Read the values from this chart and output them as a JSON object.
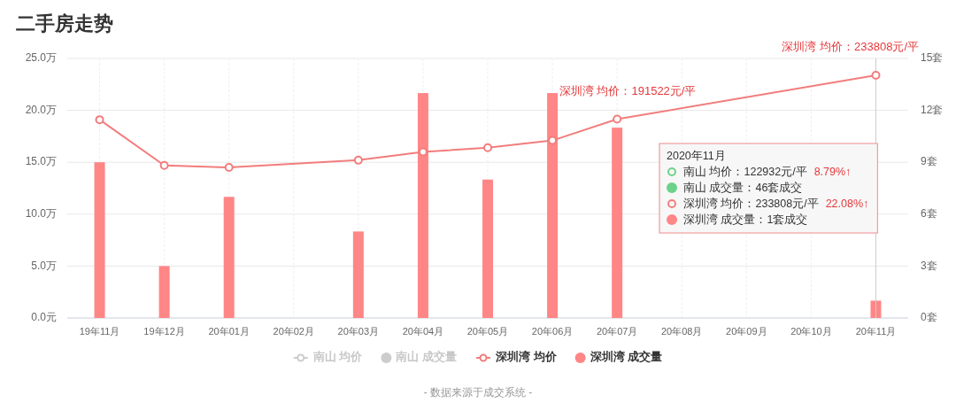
{
  "chart_data": {
    "type": "bar",
    "title": "二手房走势",
    "categories": [
      "19年11月",
      "19年12月",
      "20年01月",
      "20年02月",
      "20年03月",
      "20年04月",
      "20年05月",
      "20年06月",
      "20年07月",
      "20年08月",
      "20年09月",
      "20年10月",
      "20年11月"
    ],
    "series": [
      {
        "name": "南山 均价",
        "type": "line",
        "color": "#cccccc",
        "values": [
          null,
          null,
          null,
          null,
          null,
          null,
          null,
          null,
          null,
          null,
          null,
          null,
          null
        ]
      },
      {
        "name": "南山 成交量",
        "axis": "y2",
        "color": "#cccccc",
        "values": [
          null,
          null,
          null,
          null,
          null,
          null,
          null,
          null,
          null,
          null,
          null,
          null,
          null
        ]
      },
      {
        "name": "深圳湾 均价",
        "type": "line",
        "color": "#f27d7d",
        "values": [
          19.1,
          14.7,
          14.5,
          null,
          15.2,
          16.0,
          16.4,
          17.1,
          19.1522,
          null,
          null,
          null,
          23.3808
        ]
      },
      {
        "name": "深圳湾 成交量",
        "axis": "y2",
        "color": "#ff8686",
        "values": [
          9,
          3,
          7,
          null,
          5,
          13,
          8,
          13,
          11,
          null,
          null,
          null,
          1
        ]
      }
    ],
    "ylim": [
      0,
      25
    ],
    "yticks": [
      {
        "value": 0,
        "label": "0.0元"
      },
      {
        "value": 5,
        "label": "5.0万"
      },
      {
        "value": 10,
        "label": "10.0万"
      },
      {
        "value": 15,
        "label": "15.0万"
      },
      {
        "value": 20,
        "label": "20.0万"
      },
      {
        "value": 25,
        "label": "25.0万"
      }
    ],
    "y2lim": [
      0,
      15
    ],
    "y2ticks": [
      {
        "value": 0,
        "label": "0套"
      },
      {
        "value": 3,
        "label": "3套"
      },
      {
        "value": 6,
        "label": "6套"
      },
      {
        "value": 9,
        "label": "9套"
      },
      {
        "value": 12,
        "label": "12套"
      },
      {
        "value": 15,
        "label": "15套"
      }
    ],
    "grid": true,
    "legend": "bottom",
    "marker": "circle",
    "line_style": "solid",
    "ref_lines": [
      {
        "axis": "x",
        "value": "20年11月",
        "color": "#cccccc"
      }
    ],
    "annotations": [
      {
        "text": "深圳湾 均价：191522元/平",
        "x": "20年07月",
        "y": 19.1522
      },
      {
        "text": "深圳湾 均价：233808元/平",
        "x": "20年11月",
        "y": 23.3808
      },
      "2020年11月",
      "南山 均价：122932元/平  8.79%↑",
      "南山 成交量：46套成交",
      "深圳湾 均价：233808元/平  22.08%↑",
      "深圳湾 成交量：1套成交",
      "- 数据来源于成交系统 -"
    ]
  }
}
